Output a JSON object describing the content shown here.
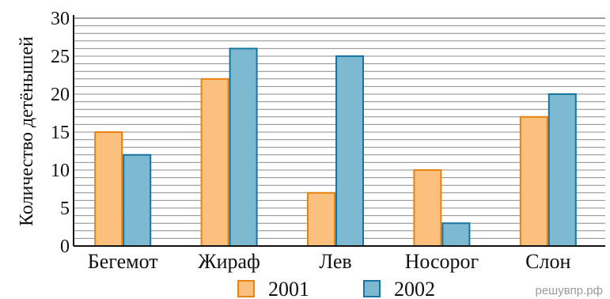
{
  "chart_data": {
    "type": "bar",
    "ylabel": "Количество детёнышей",
    "xlabel": "",
    "categories": [
      "Бегемот",
      "Жираф",
      "Лев",
      "Носорог",
      "Слон"
    ],
    "series": [
      {
        "name": "2001",
        "values": [
          15,
          22,
          7,
          10,
          17
        ],
        "color": "#fbbf7e",
        "stroke": "#e8830f"
      },
      {
        "name": "2002",
        "values": [
          12,
          26,
          25,
          3,
          20
        ],
        "color": "#7dbad1",
        "stroke": "#1676a3"
      }
    ],
    "ylim": [
      0,
      30
    ],
    "yticks": [
      "0",
      "5",
      "10",
      "15",
      "20",
      "25",
      "30"
    ],
    "minor_grid_step": 1,
    "grid": true,
    "legend": "bottom-center"
  },
  "watermark": "решувпр.рф"
}
